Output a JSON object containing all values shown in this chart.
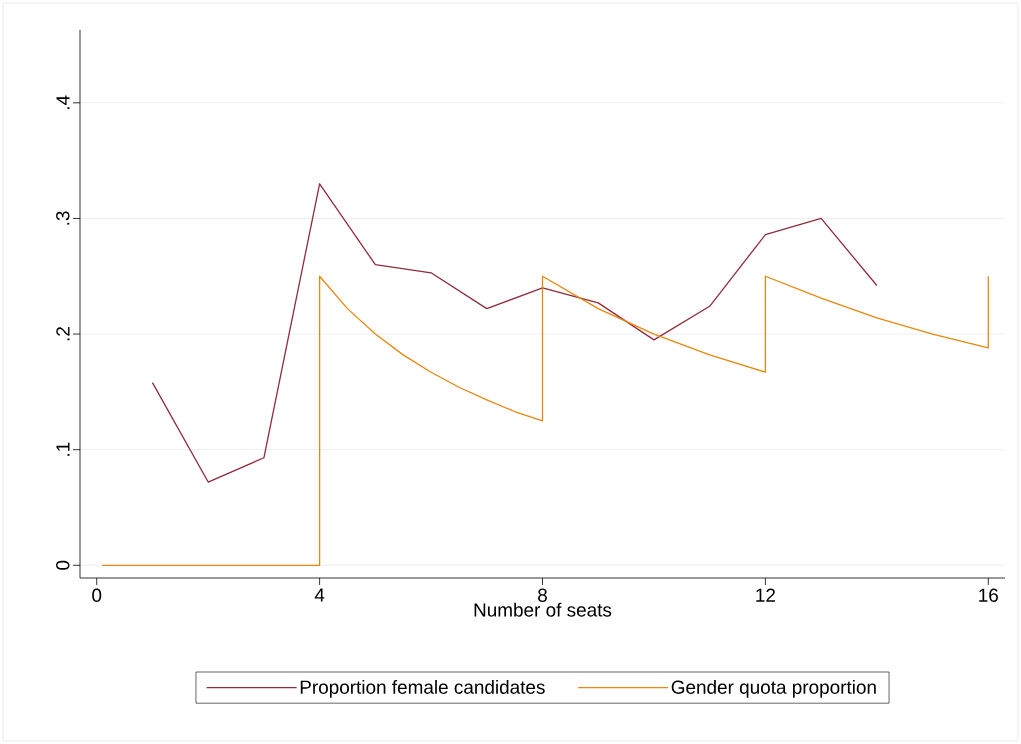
{
  "chart_data": {
    "type": "line",
    "xlabel": "Number of seats",
    "xlim": [
      -0.3,
      16.3
    ],
    "ylim": [
      -0.011,
      0.463
    ],
    "xticks": [
      0,
      4,
      8,
      12,
      16
    ],
    "yticks": [
      0,
      {
        "value": 0.1,
        "label": ".1"
      },
      {
        "value": 0.2,
        "label": ".2"
      },
      {
        "value": 0.3,
        "label": ".3"
      },
      {
        "value": 0.4,
        "label": ".4"
      }
    ],
    "grid": "y",
    "legend": "bottom",
    "marker": "none",
    "line_style": "solid",
    "series": [
      {
        "name": "Proportion female candidates",
        "color": "#8f2c3a",
        "x": [
          1,
          2,
          3,
          4,
          5,
          6,
          7,
          8,
          9,
          10,
          11,
          12,
          13,
          14
        ],
        "values": [
          0.158,
          0.072,
          0.093,
          0.33,
          0.26,
          0.253,
          0.222,
          0.24,
          0.227,
          0.195,
          0.224,
          0.286,
          0.3,
          0.242
        ]
      },
      {
        "name": "Gender quota proportion",
        "color": "#e8870e",
        "x": [
          0.1,
          4,
          4,
          4.5,
          5,
          5.5,
          6,
          6.5,
          7,
          7.5,
          8,
          8,
          9,
          10,
          11,
          12,
          12,
          13,
          14,
          15,
          16,
          16
        ],
        "values": [
          0,
          0,
          0.25,
          0.222,
          0.2,
          0.182,
          0.167,
          0.154,
          0.143,
          0.133,
          0.125,
          0.25,
          0.222,
          0.2,
          0.182,
          0.167,
          0.25,
          0.231,
          0.214,
          0.2,
          0.188,
          0.25
        ]
      }
    ]
  }
}
